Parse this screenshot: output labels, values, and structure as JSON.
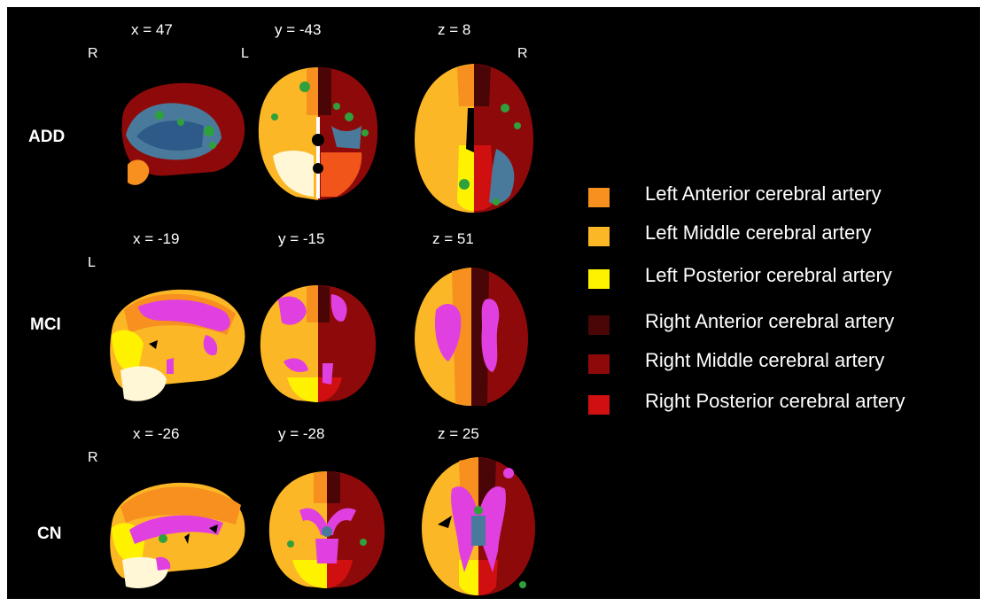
{
  "colors": {
    "left_anterior": "#f7901e",
    "left_middle": "#fbb725",
    "left_posterior": "#fff200",
    "right_anterior": "#4a0606",
    "right_middle": "#8e0a0a",
    "right_posterior": "#d01010",
    "cerebellum_light": "#fff7d6",
    "lesion_blue": "#4a7a9b",
    "lesion_green": "#2fa03c",
    "lesion_magenta": "#e040e0"
  },
  "rows": [
    {
      "group": "ADD",
      "panels": [
        {
          "coord": "x = 47",
          "orientation": "R"
        },
        {
          "coord": "y = -43",
          "orientation": "L"
        },
        {
          "coord": "z = 8",
          "orientation": "R"
        }
      ]
    },
    {
      "group": "MCI",
      "panels": [
        {
          "coord": "x = -19",
          "orientation": "L"
        },
        {
          "coord": "y = -15",
          "orientation": ""
        },
        {
          "coord": "z = 51",
          "orientation": ""
        }
      ]
    },
    {
      "group": "CN",
      "panels": [
        {
          "coord": "x = -26",
          "orientation": "R"
        },
        {
          "coord": "y = -28",
          "orientation": ""
        },
        {
          "coord": "z = 25",
          "orientation": ""
        }
      ]
    }
  ],
  "legend": [
    {
      "label": "Left Anterior cerebral artery",
      "color": "#f7901e"
    },
    {
      "label": "Left Middle cerebral artery",
      "color": "#fbb725"
    },
    {
      "label": "Left Posterior cerebral artery",
      "color": "#fff200"
    },
    {
      "label": "Right Anterior cerebral artery",
      "color": "#4a0606"
    },
    {
      "label": "Right Middle cerebral artery",
      "color": "#8e0a0a"
    },
    {
      "label": "Right Posterior cerebral artery",
      "color": "#d01010"
    }
  ]
}
